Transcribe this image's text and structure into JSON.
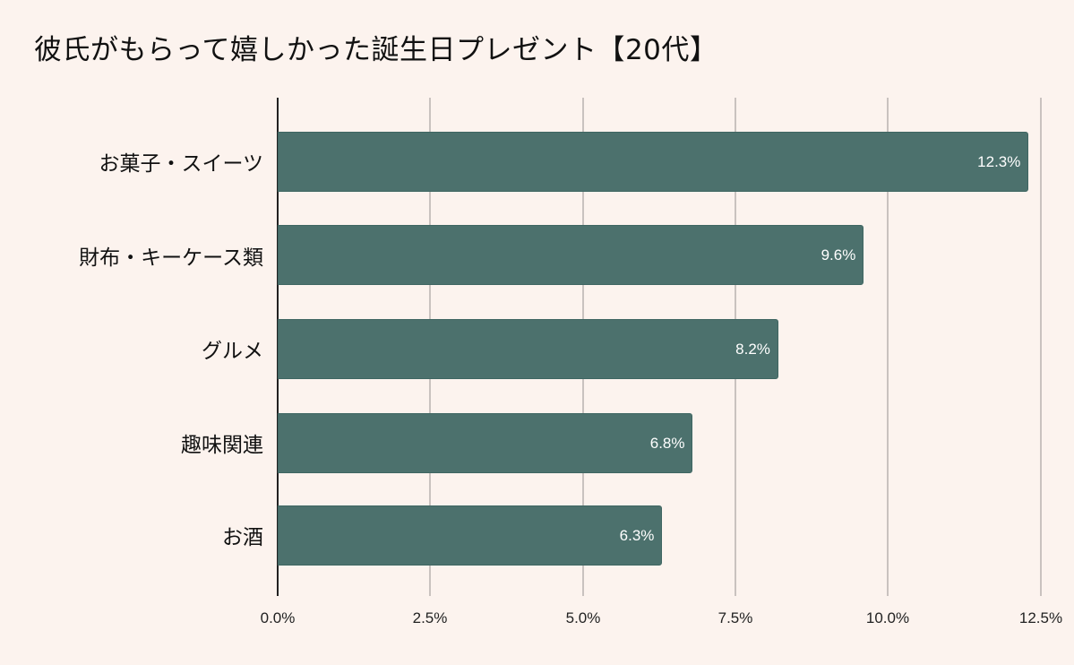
{
  "title": "彼氏がもらって嬉しかった誕生日プレゼント【20代】",
  "colors": {
    "background": "#fcf3ee",
    "bar": "#4c716d",
    "grid": "#c9c2bf"
  },
  "chart_data": {
    "type": "bar",
    "orientation": "horizontal",
    "title": "彼氏がもらって嬉しかった誕生日プレゼント【20代】",
    "categories": [
      "お菓子・スイーツ",
      "財布・キーケース類",
      "グルメ",
      "趣味関連",
      "お酒"
    ],
    "values": [
      12.3,
      9.6,
      8.2,
      6.8,
      6.3
    ],
    "value_labels": [
      "12.3%",
      "9.6%",
      "8.2%",
      "6.8%",
      "6.3%"
    ],
    "xlabel": "",
    "ylabel": "",
    "xlim": [
      0,
      12.5
    ],
    "x_ticks": [
      "0.0%",
      "2.5%",
      "5.0%",
      "7.5%",
      "10.0%",
      "12.5%"
    ],
    "grid": true,
    "legend": false
  }
}
